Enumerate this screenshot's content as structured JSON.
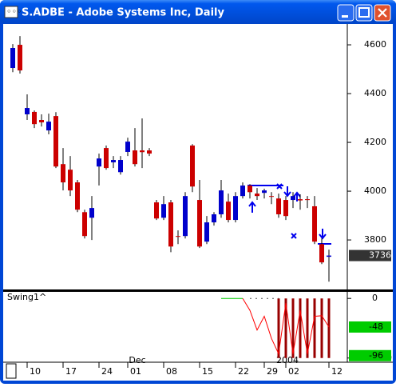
{
  "window": {
    "title": "S.ADBE - Adobe Systems Inc, Daily"
  },
  "chart_data": [
    {
      "type": "candlestick",
      "categories": [
        null,
        null,
        null,
        "10",
        null,
        null,
        null,
        null,
        "17",
        null,
        null,
        null,
        null,
        "24",
        null,
        null,
        null,
        "01",
        null,
        null,
        null,
        null,
        "08",
        null,
        null,
        null,
        null,
        "15",
        null,
        null,
        null,
        null,
        "22",
        null,
        null,
        null,
        "29",
        null,
        null,
        "02",
        null,
        null,
        null,
        null,
        null,
        "12"
      ],
      "open": [
        4505,
        4600,
        4315,
        4325,
        4292,
        4249,
        4308,
        4111,
        4088,
        4036,
        3914,
        3891,
        4101,
        4177,
        4118,
        4078,
        4161,
        4167,
        4167,
        4167,
        3954,
        3891,
        3954,
        3816,
        3816,
        4187,
        3964,
        3793,
        3872,
        3905,
        3957,
        3882,
        3980,
        4023,
        3990,
        3993,
        3980,
        3970,
        3964,
        3964,
        3967,
        3967,
        3938,
        3783,
        3731,
        null
      ],
      "high": [
        4603,
        4636,
        4397,
        4331,
        4315,
        4318,
        4324,
        4177,
        4144,
        4046,
        3924,
        3980,
        4154,
        4187,
        4144,
        4144,
        4219,
        4259,
        4298,
        4177,
        3964,
        3980,
        3964,
        3839,
        3996,
        4193,
        4046,
        3898,
        3914,
        4046,
        3990,
        3996,
        4036,
        4029,
        4013,
        4010,
        3996,
        3990,
        3980,
        3996,
        3987,
        3980,
        3980,
        3806,
        3760,
        null
      ],
      "low": [
        4488,
        4482,
        4292,
        4259,
        4265,
        4233,
        4095,
        4003,
        3980,
        3914,
        3806,
        3800,
        4023,
        4088,
        4095,
        4068,
        4144,
        4101,
        4095,
        4144,
        3882,
        3882,
        3750,
        3783,
        3806,
        3996,
        3767,
        3783,
        3859,
        3891,
        3872,
        3872,
        3970,
        3970,
        3964,
        3970,
        3947,
        3891,
        3882,
        3931,
        3924,
        3931,
        3783,
        3701,
        3629,
        null
      ],
      "close": [
        4587,
        4495,
        4341,
        4275,
        4282,
        4285,
        4101,
        4036,
        4003,
        3924,
        3816,
        3931,
        4134,
        4095,
        4128,
        4128,
        4203,
        4111,
        4160,
        4154,
        3888,
        3947,
        3773,
        3813,
        3980,
        4019,
        3773,
        3872,
        3905,
        4003,
        3882,
        3980,
        4023,
        3996,
        3980,
        4003,
        3977,
        3905,
        3898,
        3980,
        3962,
        3964,
        3793,
        3708,
        3736,
        null
      ],
      "up_color": "#0000cc",
      "down_color": "#cc0000",
      "ylim": [
        3597,
        4669
      ],
      "yticks": [
        3800,
        4000,
        4200,
        4400,
        4600
      ],
      "last_value": 3736,
      "annotations": [
        "Dec",
        "2004"
      ]
    },
    {
      "type": "line",
      "title": "Swing1^",
      "series": [
        {
          "color": "#00cc00",
          "values": [
            null,
            null,
            null,
            null,
            null,
            null,
            null,
            null,
            null,
            null,
            null,
            null,
            null,
            null,
            null,
            null,
            null,
            null,
            null,
            null,
            null,
            null,
            null,
            null,
            null,
            null,
            null,
            null,
            null,
            0,
            0,
            0,
            0,
            null,
            null,
            null,
            null,
            null,
            null,
            null,
            null,
            null,
            null,
            null,
            null,
            null
          ]
        },
        {
          "color": "#555555",
          "dotted": true,
          "values": [
            null,
            null,
            null,
            null,
            null,
            null,
            null,
            null,
            null,
            null,
            null,
            null,
            null,
            null,
            null,
            null,
            null,
            null,
            null,
            null,
            null,
            null,
            null,
            null,
            null,
            null,
            null,
            null,
            null,
            null,
            null,
            null,
            null,
            0,
            0,
            0,
            0,
            0,
            null,
            null,
            null,
            null,
            null,
            null,
            null,
            null
          ]
        },
        {
          "color": "#ff0000",
          "values": [
            null,
            null,
            null,
            null,
            null,
            null,
            null,
            null,
            null,
            null,
            null,
            null,
            null,
            null,
            null,
            null,
            null,
            null,
            null,
            null,
            null,
            null,
            null,
            null,
            null,
            null,
            null,
            null,
            null,
            null,
            null,
            null,
            0,
            -20,
            -53,
            -30,
            -67,
            -93,
            -8,
            -93,
            -20,
            -93,
            -30,
            -29,
            -48,
            null
          ]
        }
      ],
      "bars": {
        "color": "#990000",
        "values": [
          null,
          null,
          null,
          null,
          null,
          null,
          null,
          null,
          null,
          null,
          null,
          null,
          null,
          null,
          null,
          null,
          null,
          null,
          null,
          null,
          null,
          null,
          null,
          null,
          null,
          null,
          null,
          null,
          null,
          null,
          null,
          null,
          null,
          null,
          null,
          null,
          null,
          -100,
          -100,
          -100,
          -100,
          -100,
          -100,
          -100,
          -100,
          null
        ]
      },
      "ylim": [
        -103,
        11
      ],
      "yticks": [
        0,
        -100
      ],
      "last_labels": [
        -48,
        -96
      ]
    }
  ]
}
